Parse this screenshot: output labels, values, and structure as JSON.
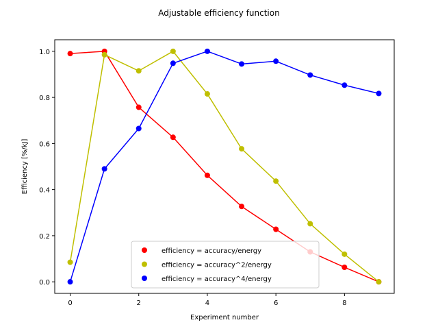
{
  "chart_data": {
    "type": "line",
    "title": "Adjustable efficiency function",
    "xlabel": "Experiment number",
    "ylabel": "Efficiency [%/kJ]",
    "x": [
      0,
      1,
      2,
      3,
      4,
      5,
      6,
      7,
      8,
      9
    ],
    "xlim": [
      -0.45,
      9.45
    ],
    "ylim": [
      -0.05,
      1.05
    ],
    "xticks": [
      0,
      2,
      4,
      6,
      8
    ],
    "yticks": [
      0.0,
      0.2,
      0.4,
      0.6,
      0.8,
      1.0
    ],
    "xtick_labels": [
      "0",
      "2",
      "4",
      "6",
      "8"
    ],
    "ytick_labels": [
      "0.0",
      "0.2",
      "0.4",
      "0.6",
      "0.8",
      "1.0"
    ],
    "grid": false,
    "legend_position": "lower-center",
    "series": [
      {
        "name": "efficiency = accuracy/energy",
        "color": "#ff0000",
        "values": [
          0.99,
          1.0,
          0.757,
          0.627,
          0.462,
          0.327,
          0.228,
          0.13,
          0.063,
          0.0
        ]
      },
      {
        "name": "efficiency = accuracy^2/energy",
        "color": "#bfbf00",
        "values": [
          0.085,
          0.985,
          0.915,
          1.0,
          0.815,
          0.577,
          0.437,
          0.252,
          0.12,
          0.0
        ]
      },
      {
        "name": "efficiency = accuracy^4/energy",
        "color": "#0000ff",
        "values": [
          0.0,
          0.49,
          0.665,
          0.948,
          1.0,
          0.945,
          0.957,
          0.897,
          0.853,
          0.817
        ]
      }
    ]
  }
}
